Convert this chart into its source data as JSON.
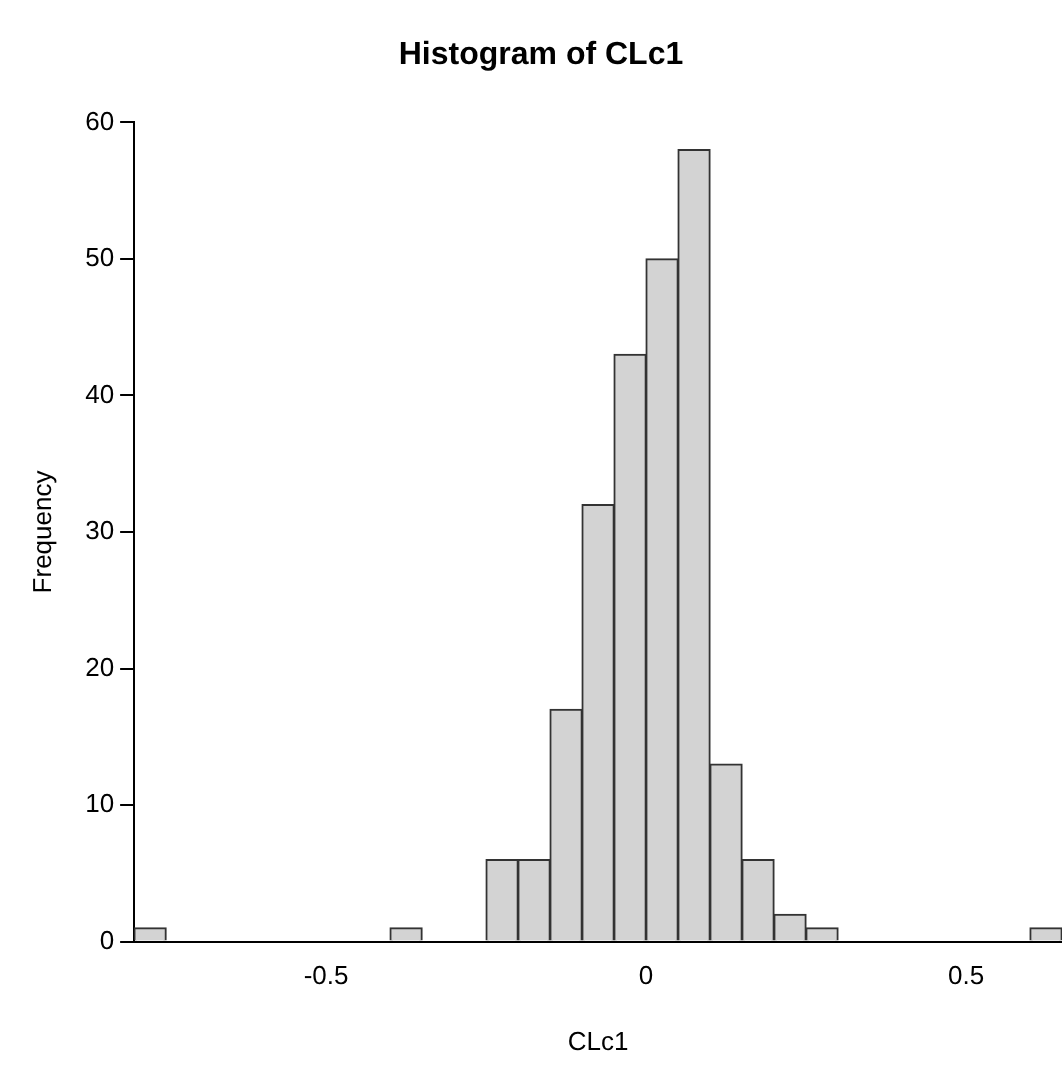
{
  "chart_data": {
    "type": "histogram",
    "title": "Histogram of CLc1",
    "xlabel": "CLc1",
    "ylabel": "Frequency",
    "bins": [
      -0.8,
      -0.75,
      -0.7,
      -0.65,
      -0.6,
      -0.55,
      -0.5,
      -0.45,
      -0.4,
      -0.35,
      -0.3,
      -0.25,
      -0.2,
      -0.15,
      -0.1,
      -0.05,
      0,
      0.05,
      0.1,
      0.15,
      0.2,
      0.25,
      0.3,
      0.35,
      0.4,
      0.45,
      0.5,
      0.55,
      0.6,
      0.65
    ],
    "values": [
      1,
      0,
      0,
      0,
      0,
      0,
      0,
      0,
      1,
      0,
      0,
      6,
      6,
      17,
      32,
      43,
      50,
      58,
      13,
      6,
      2,
      1,
      0,
      0,
      0,
      0,
      0,
      0,
      1
    ],
    "color": "#d3d3d3",
    "xlim": [
      -0.8,
      0.65
    ],
    "xticks": [
      -0.5,
      0,
      0.5
    ],
    "ylim": [
      0,
      60
    ],
    "yticks": [
      0,
      10,
      20,
      30,
      40,
      50,
      60
    ],
    "grid": false,
    "legend": false
  }
}
